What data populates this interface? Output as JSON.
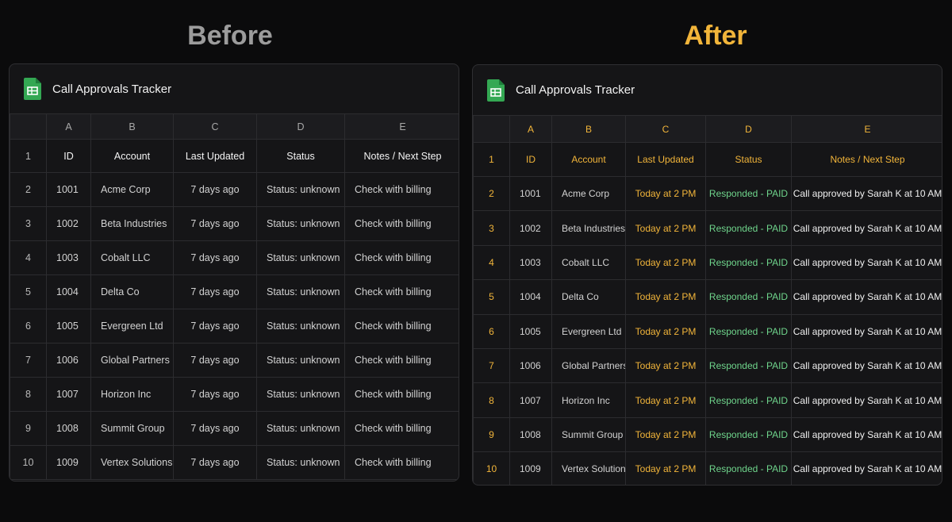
{
  "panels": [
    {
      "heading": "Before",
      "title": "Call Approvals Tracker",
      "columns": [
        "A",
        "B",
        "C",
        "D",
        "E"
      ],
      "header": {
        "row_number": "1",
        "cells": [
          "ID",
          "Account",
          "Last Updated",
          "Status",
          "Notes / Next Step"
        ]
      },
      "rows": [
        {
          "row_number": "2",
          "cells": [
            "1001",
            "Acme Corp",
            "7 days ago",
            "Status: unknown",
            "Check with billing"
          ]
        },
        {
          "row_number": "3",
          "cells": [
            "1002",
            "Beta Industries",
            "7 days ago",
            "Status: unknown",
            "Check with billing"
          ]
        },
        {
          "row_number": "4",
          "cells": [
            "1003",
            "Cobalt LLC",
            "7 days ago",
            "Status: unknown",
            "Check with billing"
          ]
        },
        {
          "row_number": "5",
          "cells": [
            "1004",
            "Delta Co",
            "7 days ago",
            "Status: unknown",
            "Check with billing"
          ]
        },
        {
          "row_number": "6",
          "cells": [
            "1005",
            "Evergreen Ltd",
            "7 days ago",
            "Status: unknown",
            "Check with billing"
          ]
        },
        {
          "row_number": "7",
          "cells": [
            "1006",
            "Global Partners",
            "7 days ago",
            "Status: unknown",
            "Check with billing"
          ]
        },
        {
          "row_number": "8",
          "cells": [
            "1007",
            "Horizon Inc",
            "7 days ago",
            "Status: unknown",
            "Check with billing"
          ]
        },
        {
          "row_number": "9",
          "cells": [
            "1008",
            "Summit Group",
            "7 days ago",
            "Status: unknown",
            "Check with billing"
          ]
        },
        {
          "row_number": "10",
          "cells": [
            "1009",
            "Vertex Solutions",
            "7 days ago",
            "Status: unknown",
            "Check with billing"
          ]
        }
      ]
    },
    {
      "heading": "After",
      "title": "Call Approvals Tracker",
      "columns": [
        "A",
        "B",
        "C",
        "D",
        "E"
      ],
      "header": {
        "row_number": "1",
        "cells": [
          "ID",
          "Account",
          "Last Updated",
          "Status",
          "Notes / Next Step"
        ]
      },
      "rows": [
        {
          "row_number": "2",
          "cells": [
            "1001",
            "Acme Corp",
            "Today at 2 PM",
            "Responded - PAID",
            "Call approved by Sarah K at 10 AM"
          ]
        },
        {
          "row_number": "3",
          "cells": [
            "1002",
            "Beta Industries",
            "Today at 2 PM",
            "Responded - PAID",
            "Call approved by Sarah K at 10 AM"
          ]
        },
        {
          "row_number": "4",
          "cells": [
            "1003",
            "Cobalt LLC",
            "Today at 2 PM",
            "Responded - PAID",
            "Call approved by Sarah K at 10 AM"
          ]
        },
        {
          "row_number": "5",
          "cells": [
            "1004",
            "Delta Co",
            "Today at 2 PM",
            "Responded - PAID",
            "Call approved by Sarah K at 10 AM"
          ]
        },
        {
          "row_number": "6",
          "cells": [
            "1005",
            "Evergreen Ltd",
            "Today at 2 PM",
            "Responded - PAID",
            "Call approved by Sarah K at 10 AM"
          ]
        },
        {
          "row_number": "7",
          "cells": [
            "1006",
            "Global Partners",
            "Today at 2 PM",
            "Responded - PAID",
            "Call approved by Sarah K at 10 AM"
          ]
        },
        {
          "row_number": "8",
          "cells": [
            "1007",
            "Horizon Inc",
            "Today at 2 PM",
            "Responded - PAID",
            "Call approved by Sarah K at 10 AM"
          ]
        },
        {
          "row_number": "9",
          "cells": [
            "1008",
            "Summit Group",
            "Today at 2 PM",
            "Responded - PAID",
            "Call approved by Sarah K at 10 AM"
          ]
        },
        {
          "row_number": "10",
          "cells": [
            "1009",
            "Vertex Solutions",
            "Today at 2 PM",
            "Responded - PAID",
            "Call approved by Sarah K at 10 AM"
          ]
        }
      ]
    }
  ]
}
